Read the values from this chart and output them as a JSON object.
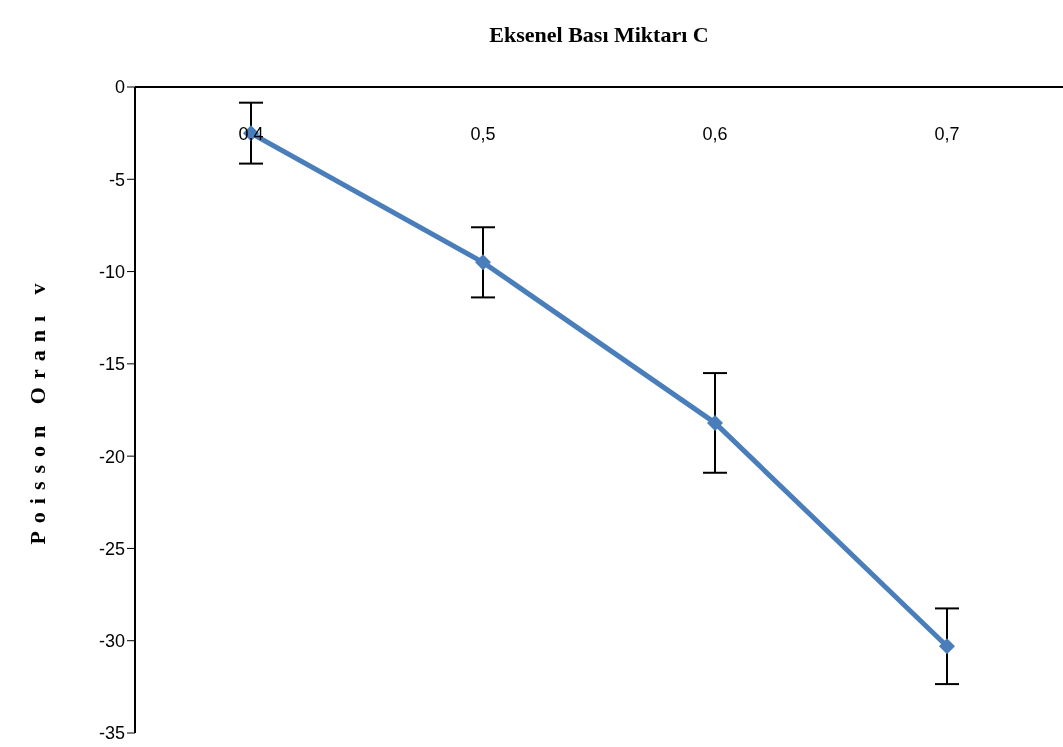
{
  "chart_data": {
    "type": "line",
    "title": "Eksenel Bası Miktarı C",
    "ylabel": "Poisson Oranı v",
    "categories": [
      "0,4",
      "0,5",
      "0,6",
      "0,7"
    ],
    "series": [
      {
        "color": "#4a7ebb",
        "values": [
          -2.5,
          -9.5,
          -18.2,
          -30.3
        ],
        "errors": [
          1.65,
          1.9,
          2.7,
          2.05
        ]
      }
    ],
    "ylim": [
      -35,
      0
    ],
    "yticks": [
      -35,
      -30,
      -25,
      -20,
      -15,
      -10,
      -5,
      0
    ],
    "marker": "diamond",
    "line_style": "solid"
  }
}
